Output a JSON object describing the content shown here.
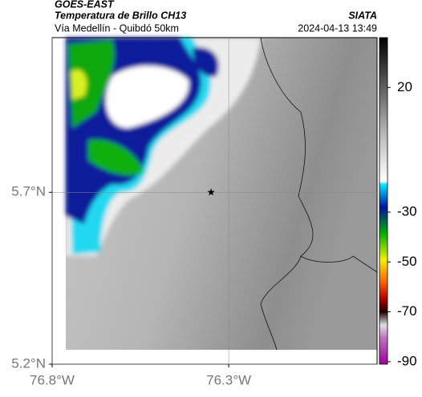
{
  "header": {
    "source": "GOES-EAST",
    "product": "Temperatura de Brillo CH13",
    "route": "Vía Medellín - Quibdó 50km",
    "agency": "SIATA",
    "timestamp": "2024-04-13 13:49"
  },
  "map": {
    "xlim": [
      -76.8,
      -75.88
    ],
    "ylim": [
      5.2,
      6.15
    ],
    "xticks": [
      {
        "value": -76.8,
        "label": "76.8°W"
      },
      {
        "value": -76.3,
        "label": "76.3°W"
      }
    ],
    "yticks": [
      {
        "value": 5.2,
        "label": "5.2°N"
      },
      {
        "value": 5.7,
        "label": "5.7°N"
      }
    ],
    "marker": {
      "lon": -76.35,
      "lat": 5.7
    }
  },
  "colorbar": {
    "clim": [
      40,
      -91
    ],
    "ticks": [
      20,
      -30,
      -50,
      -70,
      -90
    ]
  }
}
